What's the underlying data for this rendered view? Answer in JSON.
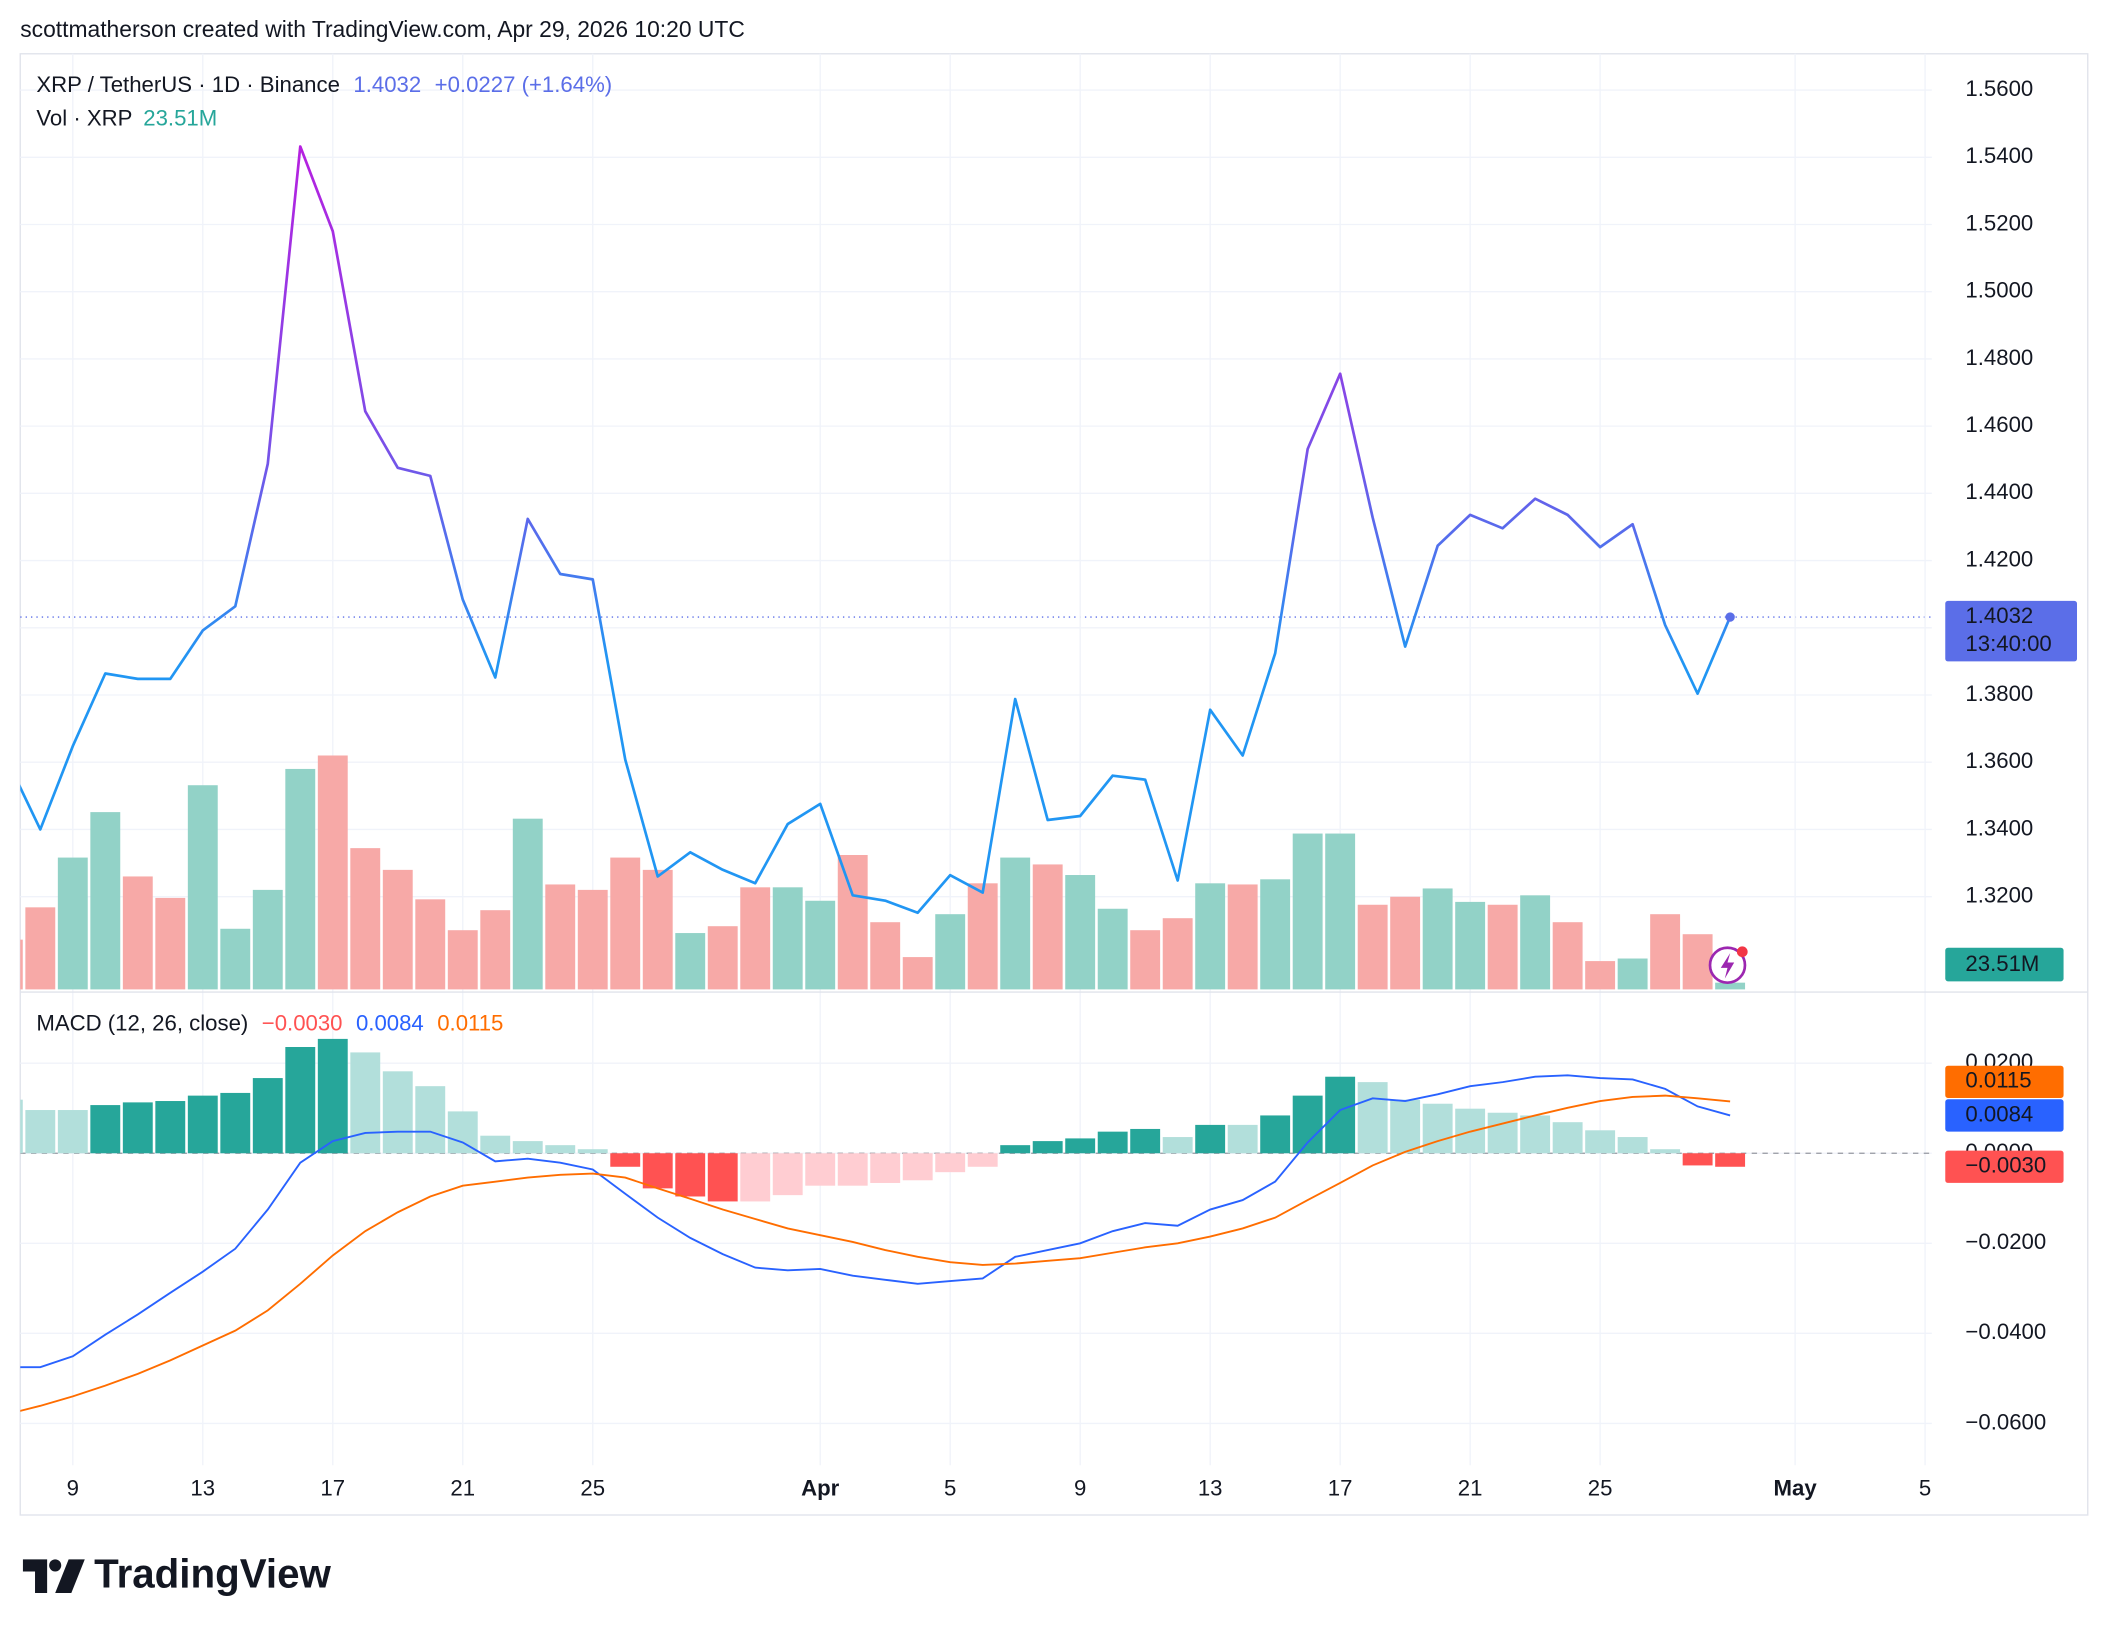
{
  "header": {
    "credit": "scottmatherson created with TradingView.com, Apr 29, 2026 10:20 UTC",
    "logo": "TradingView"
  },
  "chart_data": [
    {
      "type": "line",
      "title": "XRP / TetherUS · 1D · Binance",
      "change": "+0.0227 (+1.64%)",
      "countdown": "13:40:00",
      "x": [
        "2026-03-07",
        "2026-03-08",
        "2026-03-09",
        "2026-03-10",
        "2026-03-11",
        "2026-03-12",
        "2026-03-13",
        "2026-03-14",
        "2026-03-15",
        "2026-03-16",
        "2026-03-17",
        "2026-03-18",
        "2026-03-19",
        "2026-03-20",
        "2026-03-21",
        "2026-03-22",
        "2026-03-23",
        "2026-03-24",
        "2026-03-25",
        "2026-03-26",
        "2026-03-27",
        "2026-03-28",
        "2026-03-29",
        "2026-03-30",
        "2026-03-31",
        "2026-04-01",
        "2026-04-02",
        "2026-04-03",
        "2026-04-04",
        "2026-04-05",
        "2026-04-06",
        "2026-04-07",
        "2026-04-08",
        "2026-04-09",
        "2026-04-10",
        "2026-04-11",
        "2026-04-12",
        "2026-04-13",
        "2026-04-14",
        "2026-04-15",
        "2026-04-16",
        "2026-04-17",
        "2026-04-18",
        "2026-04-19",
        "2026-04-20",
        "2026-04-21",
        "2026-04-22",
        "2026-04-23",
        "2026-04-24",
        "2026-04-25",
        "2026-04-26",
        "2026-04-27",
        "2026-04-28",
        "2026-04-29"
      ],
      "xlim": [
        "2026-03-07",
        "2026-05-05"
      ],
      "series": [
        {
          "colors": [
            "#b620e0",
            "#7a50e8",
            "#2196f3"
          ],
          "marker_color": "#5b6ee8",
          "values": [
            1.3602,
            1.34,
            1.3648,
            1.3864,
            1.3848,
            1.3848,
            1.3992,
            1.4064,
            1.4488,
            1.5432,
            1.518,
            1.4644,
            1.4476,
            1.4452,
            1.4084,
            1.3852,
            1.4324,
            1.416,
            1.4144,
            1.3608,
            1.326,
            1.3332,
            1.328,
            1.324,
            1.3416,
            1.3476,
            1.3204,
            1.3188,
            1.3152,
            1.3264,
            1.3212,
            1.3788,
            1.3428,
            1.344,
            1.356,
            1.3548,
            1.3248,
            1.3756,
            1.362,
            1.3924,
            1.4532,
            1.4756,
            1.4328,
            1.3944,
            1.4244,
            1.4336,
            1.4296,
            1.4384,
            1.4336,
            1.424,
            1.4308,
            1.4008,
            1.3804,
            1.4032
          ]
        }
      ],
      "volume": {
        "name": "Vol · XRP",
        "last_label": "23.51M",
        "label_color": "#26a69a",
        "values": [
          174,
          287,
          461,
          620,
          395,
          320,
          714,
          212,
          348,
          771,
          818,
          494,
          418,
          315,
          207,
          277,
          597,
          367,
          348,
          461,
          418,
          197,
          221,
          357,
          357,
          310,
          470,
          235,
          113,
          263,
          371,
          461,
          437,
          400,
          282,
          207,
          249,
          371,
          367,
          385,
          545,
          545,
          296,
          324,
          353,
          306,
          296,
          329,
          235,
          99,
          108,
          263,
          193,
          23.51
        ],
        "colors": [
          "#f7a9a7",
          "#f7a9a7",
          "#92d2c7",
          "#92d2c7",
          "#f7a9a7",
          "#f7a9a7",
          "#92d2c7",
          "#92d2c7",
          "#92d2c7",
          "#92d2c7",
          "#f7a9a7",
          "#f7a9a7",
          "#f7a9a7",
          "#f7a9a7",
          "#f7a9a7",
          "#f7a9a7",
          "#92d2c7",
          "#f7a9a7",
          "#f7a9a7",
          "#f7a9a7",
          "#f7a9a7",
          "#92d2c7",
          "#f7a9a7",
          "#f7a9a7",
          "#92d2c7",
          "#92d2c7",
          "#f7a9a7",
          "#f7a9a7",
          "#f7a9a7",
          "#92d2c7",
          "#f7a9a7",
          "#92d2c7",
          "#f7a9a7",
          "#92d2c7",
          "#92d2c7",
          "#f7a9a7",
          "#f7a9a7",
          "#92d2c7",
          "#f7a9a7",
          "#92d2c7",
          "#92d2c7",
          "#92d2c7",
          "#f7a9a7",
          "#f7a9a7",
          "#92d2c7",
          "#92d2c7",
          "#f7a9a7",
          "#92d2c7",
          "#f7a9a7",
          "#f7a9a7",
          "#92d2c7",
          "#f7a9a7",
          "#f7a9a7",
          "#92d2c7"
        ]
      },
      "ylim": [
        1.2924,
        1.5708
      ],
      "yticks": [
        {
          "value": 1.32,
          "label": "1.3200"
        },
        {
          "value": 1.34,
          "label": "1.3400"
        },
        {
          "value": 1.36,
          "label": "1.3600"
        },
        {
          "value": 1.38,
          "label": "1.3800"
        },
        {
          "value": 1.4,
          "label": "1.4000"
        },
        {
          "value": 1.42,
          "label": "1.4200"
        },
        {
          "value": 1.44,
          "label": "1.4400"
        },
        {
          "value": 1.46,
          "label": "1.4600"
        },
        {
          "value": 1.48,
          "label": "1.4800"
        },
        {
          "value": 1.5,
          "label": "1.5000"
        },
        {
          "value": 1.52,
          "label": "1.5200"
        },
        {
          "value": 1.54,
          "label": "1.5400"
        },
        {
          "value": 1.56,
          "label": "1.5600"
        }
      ],
      "grid": true
    },
    {
      "type": "macd",
      "title": "MACD (12, 26, close)",
      "x": [
        "2026-03-07",
        "2026-03-08",
        "2026-03-09",
        "2026-03-10",
        "2026-03-11",
        "2026-03-12",
        "2026-03-13",
        "2026-03-14",
        "2026-03-15",
        "2026-03-16",
        "2026-03-17",
        "2026-03-18",
        "2026-03-19",
        "2026-03-20",
        "2026-03-21",
        "2026-03-22",
        "2026-03-23",
        "2026-03-24",
        "2026-03-25",
        "2026-03-26",
        "2026-03-27",
        "2026-03-28",
        "2026-03-29",
        "2026-03-30",
        "2026-03-31",
        "2026-04-01",
        "2026-04-02",
        "2026-04-03",
        "2026-04-04",
        "2026-04-05",
        "2026-04-06",
        "2026-04-07",
        "2026-04-08",
        "2026-04-09",
        "2026-04-10",
        "2026-04-11",
        "2026-04-12",
        "2026-04-13",
        "2026-04-14",
        "2026-04-15",
        "2026-04-16",
        "2026-04-17",
        "2026-04-18",
        "2026-04-19",
        "2026-04-20",
        "2026-04-21",
        "2026-04-22",
        "2026-04-23",
        "2026-04-24",
        "2026-04-25",
        "2026-04-26",
        "2026-04-27",
        "2026-04-28",
        "2026-04-29"
      ],
      "xlim": [
        "2026-03-07",
        "2026-05-05"
      ],
      "histogram": {
        "last_label": "−0.0030",
        "colors": {
          "up_rising": "#26a69a",
          "up_falling": "#b2dfdb",
          "down_falling": "#ff5252",
          "down_rising": "#ffcdd2"
        },
        "values": [
          0.0119,
          0.0096,
          0.0096,
          0.0107,
          0.0113,
          0.0116,
          0.0128,
          0.0134,
          0.0167,
          0.0236,
          0.0254,
          0.0224,
          0.0182,
          0.0149,
          0.0093,
          0.0039,
          0.0027,
          0.0018,
          0.0009,
          -0.003,
          -0.0078,
          -0.0096,
          -0.0107,
          -0.0107,
          -0.0093,
          -0.0072,
          -0.0072,
          -0.0066,
          -0.006,
          -0.0042,
          -0.003,
          0.0018,
          0.0027,
          0.0033,
          0.0048,
          0.0054,
          0.0036,
          0.0063,
          0.0063,
          0.0084,
          0.0128,
          0.017,
          0.0158,
          0.0119,
          0.011,
          0.0099,
          0.009,
          0.0084,
          0.0069,
          0.0051,
          0.0036,
          0.0009,
          -0.0027,
          -0.003
        ]
      },
      "series": [
        {
          "color": "#2962ff",
          "values": [
            -0.0475,
            -0.0475,
            -0.0451,
            -0.0403,
            -0.0358,
            -0.031,
            -0.0263,
            -0.0212,
            -0.0125,
            -0.0021,
            0.0027,
            0.0045,
            0.0048,
            0.0048,
            0.0024,
            -0.0018,
            -0.0012,
            -0.0021,
            -0.0036,
            -0.009,
            -0.0143,
            -0.0188,
            -0.0224,
            -0.0254,
            -0.026,
            -0.0257,
            -0.0272,
            -0.0281,
            -0.029,
            -0.0284,
            -0.0278,
            -0.023,
            -0.0215,
            -0.02,
            -0.0173,
            -0.0155,
            -0.0161,
            -0.0125,
            -0.0104,
            -0.0063,
            0.0024,
            0.0096,
            0.0122,
            0.0116,
            0.0131,
            0.0149,
            0.0158,
            0.017,
            0.0173,
            0.0167,
            0.0164,
            0.0143,
            0.0104,
            0.0084
          ]
        },
        {
          "color": "#ff6d00",
          "values": [
            -0.0579,
            -0.0561,
            -0.054,
            -0.0516,
            -0.049,
            -0.046,
            -0.0427,
            -0.0394,
            -0.0349,
            -0.029,
            -0.0227,
            -0.0173,
            -0.0131,
            -0.0096,
            -0.0072,
            -0.0063,
            -0.0054,
            -0.0048,
            -0.0045,
            -0.0054,
            -0.0078,
            -0.0101,
            -0.0125,
            -0.0146,
            -0.0167,
            -0.0182,
            -0.0197,
            -0.0215,
            -0.023,
            -0.0242,
            -0.0248,
            -0.0245,
            -0.0239,
            -0.0233,
            -0.0221,
            -0.0209,
            -0.02,
            -0.0185,
            -0.0167,
            -0.0143,
            -0.0104,
            -0.0066,
            -0.0027,
            0.0003,
            0.0027,
            0.0048,
            0.0066,
            0.0084,
            0.0101,
            0.0116,
            0.0125,
            0.0128,
            0.0122,
            0.0115
          ]
        }
      ],
      "ylim": [
        -0.0693,
        0.0352
      ],
      "yticks": [
        {
          "value": 0.02,
          "label": "0.0200"
        },
        {
          "value": 0,
          "label": "0.0000"
        },
        {
          "value": -0.02,
          "label": "−0.0200"
        },
        {
          "value": -0.04,
          "label": "−0.0400"
        },
        {
          "value": -0.06,
          "label": "−0.0600"
        }
      ],
      "xticks": [
        {
          "value": "2026-03-09",
          "label": "9"
        },
        {
          "value": "2026-03-13",
          "label": "13"
        },
        {
          "value": "2026-03-17",
          "label": "17"
        },
        {
          "value": "2026-03-21",
          "label": "21"
        },
        {
          "value": "2026-03-25",
          "label": "25"
        },
        {
          "value": "2026-04-01",
          "label": "Apr"
        },
        {
          "value": "2026-04-05",
          "label": "5"
        },
        {
          "value": "2026-04-09",
          "label": "9"
        },
        {
          "value": "2026-04-13",
          "label": "13"
        },
        {
          "value": "2026-04-17",
          "label": "17"
        },
        {
          "value": "2026-04-21",
          "label": "21"
        },
        {
          "value": "2026-04-25",
          "label": "25"
        },
        {
          "value": "2026-05-01",
          "label": "May"
        },
        {
          "value": "2026-05-05",
          "label": "5"
        }
      ],
      "grid": true,
      "zero_line": true
    }
  ]
}
